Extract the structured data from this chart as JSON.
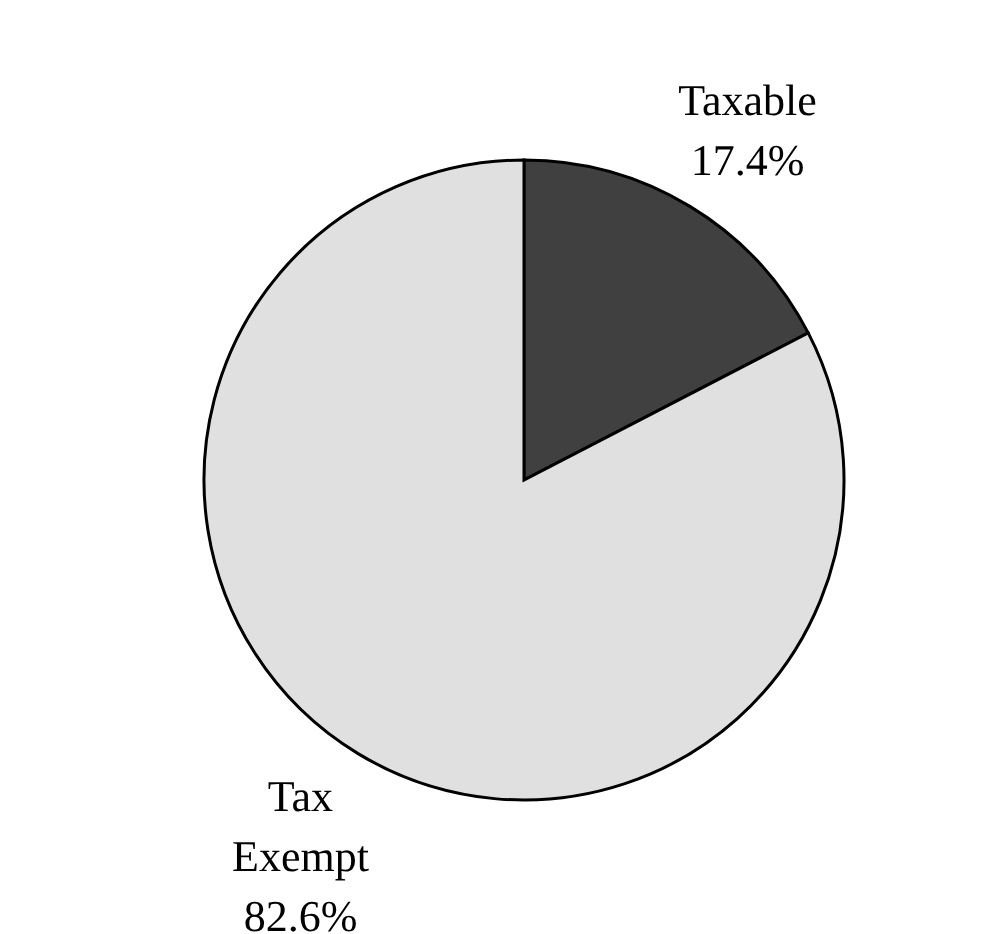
{
  "chart_data": {
    "type": "pie",
    "categories": [
      "Taxable",
      "Tax Exempt"
    ],
    "values": [
      17.4,
      82.6
    ],
    "colors": [
      "#404040",
      "#e0e0e0"
    ],
    "value_labels": [
      "17.4%",
      "82.6%"
    ]
  }
}
